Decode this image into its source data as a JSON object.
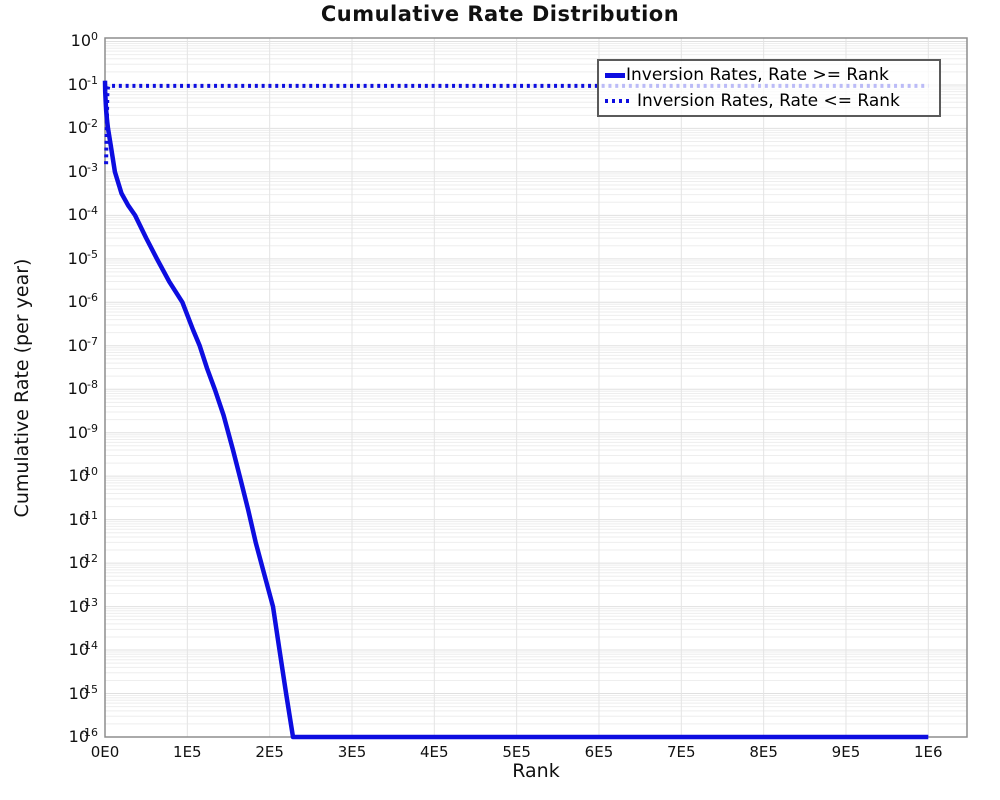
{
  "page": {
    "background": "#ffffff"
  },
  "title": "Cumulative Rate Distribution",
  "colors": {
    "line": "#0d0de0",
    "grid_minor": "#eeeeee",
    "grid_major": "#e0e0e0",
    "grid_vertical": "#e4e4e4",
    "frame": "#8d8d8d",
    "text": "#111111",
    "legend_border": "#5a5a5a"
  },
  "chart_data": {
    "type": "line",
    "title": "Cumulative Rate Distribution",
    "xlabel": "Rank",
    "ylabel": "Cumulative Rate (per year)",
    "grid": "horizontal log major+minor, vertical major",
    "legend_position": "top-right",
    "x_axis": {
      "min": 0,
      "max": 1047000,
      "ticks": [
        0,
        100000,
        200000,
        300000,
        400000,
        500000,
        600000,
        700000,
        800000,
        900000,
        1000000
      ],
      "tick_labels": [
        "0E0",
        "1E5",
        "2E5",
        "3E5",
        "4E5",
        "5E5",
        "6E5",
        "7E5",
        "8E5",
        "9E5",
        "1E6"
      ]
    },
    "y_axis": {
      "scale": "log",
      "base_label": "10",
      "tick_exponents": [
        0,
        -1,
        -2,
        -3,
        -4,
        -5,
        -6,
        -7,
        -8,
        -9,
        -10,
        -11,
        -12,
        -13,
        -14,
        -15,
        -16
      ],
      "min_exponent": -16,
      "top_padding_decades": 0.08
    },
    "series": [
      {
        "name": "Inversion Rates, Rate >= Rank",
        "style": "solid",
        "color": "#0d0de0",
        "points": [
          [
            0,
            0.125
          ],
          [
            300,
            0.07
          ],
          [
            800,
            0.04
          ],
          [
            1500,
            0.025
          ],
          [
            2500,
            0.015
          ],
          [
            3700,
            0.01
          ],
          [
            7000,
            0.004
          ],
          [
            12000,
            0.001
          ],
          [
            20000,
            0.00032
          ],
          [
            28000,
            0.00017
          ],
          [
            36600,
            0.0001
          ],
          [
            50000,
            3e-05
          ],
          [
            63000,
            1e-05
          ],
          [
            78000,
            3e-06
          ],
          [
            94000,
            1e-06
          ],
          [
            107000,
            2.3e-07
          ],
          [
            115000,
            1e-07
          ],
          [
            124000,
            3e-08
          ],
          [
            133700,
            9.5e-09
          ],
          [
            144000,
            2.5e-09
          ],
          [
            155500,
            4e-10
          ],
          [
            165000,
            8e-11
          ],
          [
            173800,
            1.7e-11
          ],
          [
            183000,
            3e-12
          ],
          [
            192000,
            7e-13
          ],
          [
            204100,
            1e-13
          ],
          [
            212000,
            1e-14
          ],
          [
            220000,
            1e-15
          ],
          [
            228400,
            1e-16
          ],
          [
            1000000,
            1e-16
          ]
        ]
      },
      {
        "name": "Inversion Rates, Rate <= Rank",
        "style": "dotted",
        "color": "#0d0de0",
        "points": [
          [
            1300,
            0.0015
          ],
          [
            1600,
            0.003
          ],
          [
            1900,
            0.006
          ],
          [
            2200,
            0.013
          ],
          [
            2500,
            0.03
          ],
          [
            2800,
            0.055
          ],
          [
            3200,
            0.08
          ],
          [
            4000,
            0.092
          ],
          [
            8000,
            0.095
          ],
          [
            1000000,
            0.095
          ]
        ]
      }
    ]
  }
}
